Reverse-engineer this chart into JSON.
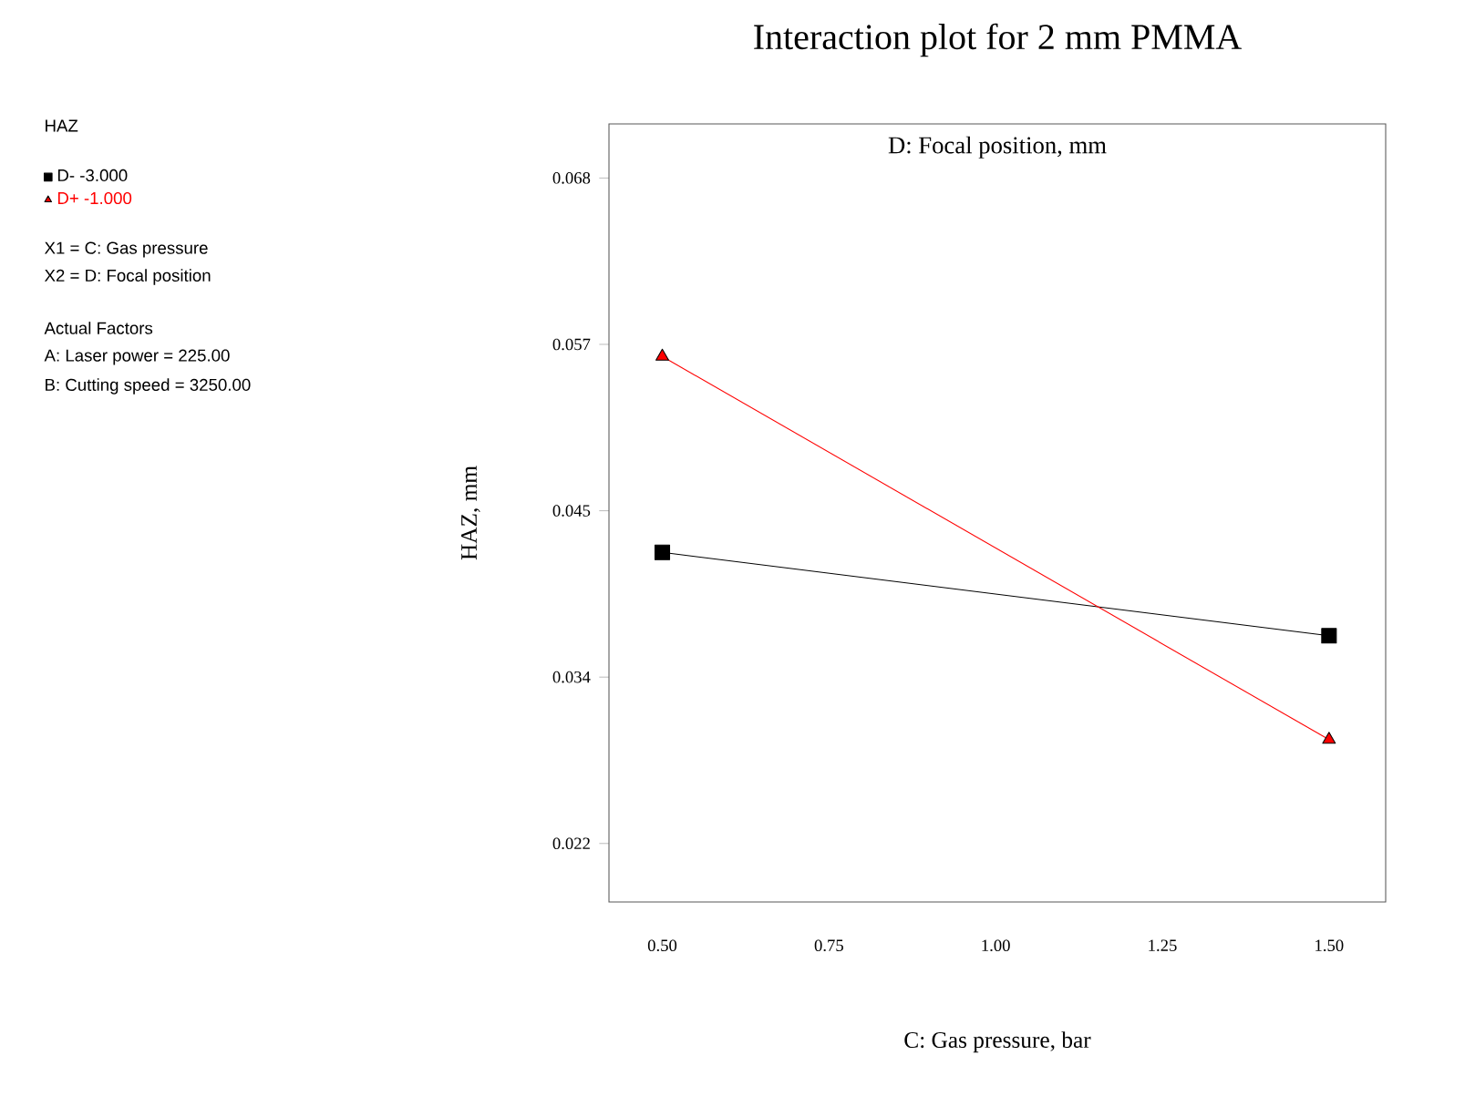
{
  "chart_data": {
    "type": "line",
    "title": "Interaction plot for 2 mm PMMA",
    "subtitle": "D: Focal position, mm",
    "xlabel": "C: Gas pressure, bar",
    "ylabel": "HAZ, mm",
    "x": [
      0.5,
      1.5
    ],
    "series": [
      {
        "name": "D- -3.000",
        "color": "#000000",
        "marker": "square",
        "values": [
          0.0424,
          0.0367
        ]
      },
      {
        "name": "D+ -1.000",
        "color": "#ff0000",
        "marker": "triangle",
        "values": [
          0.0558,
          0.0296
        ]
      }
    ],
    "xlim": [
      0.42,
      1.585
    ],
    "ylim": [
      0.0185,
      0.0717
    ],
    "xticks": [
      {
        "value": 0.5,
        "label": "0.50"
      },
      {
        "value": 0.75,
        "label": "0.75"
      },
      {
        "value": 1.0,
        "label": "1.00"
      },
      {
        "value": 1.25,
        "label": "1.25"
      },
      {
        "value": 1.5,
        "label": "1.50"
      }
    ],
    "yticks": [
      {
        "value": 0.0225,
        "label": "0.022"
      },
      {
        "value": 0.033875,
        "label": "0.034"
      },
      {
        "value": 0.04525,
        "label": "0.045"
      },
      {
        "value": 0.056625,
        "label": "0.057"
      },
      {
        "value": 0.068,
        "label": "0.068"
      }
    ],
    "legend": "left",
    "line_style": "solid",
    "grid": false,
    "annotations": [
      "HAZ",
      "X1 = C: Gas pressure",
      "X2 = D: Focal position",
      "Actual Factors",
      "A: Laser power = 225.00",
      "B: Cutting speed = 3250.00"
    ]
  }
}
